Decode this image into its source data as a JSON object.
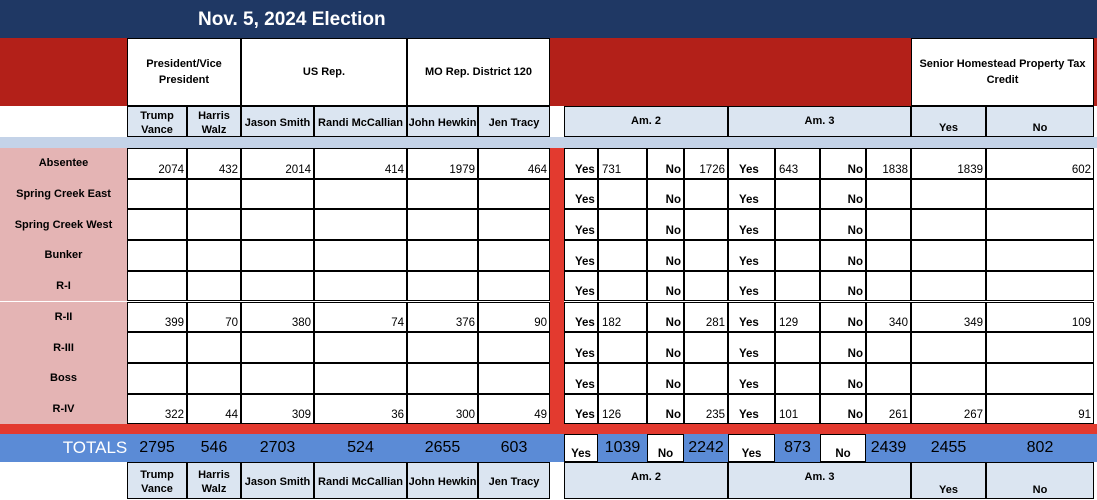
{
  "title": "Nov. 5, 2024 Election",
  "groups": {
    "president": "President/Vice President",
    "us_rep": "US Rep.",
    "mo_rep": "MO Rep. District 120",
    "senior": "Senior Homestead Property Tax Credit"
  },
  "candidates": {
    "trump": "Trump Vance",
    "harris": "Harris Walz",
    "smith": "Jason Smith",
    "mccallian": "Randi McCallian",
    "hewkin": "John Hewkin",
    "tracy": "Jen Tracy"
  },
  "amendments": {
    "am2": "Am. 2",
    "am3": "Am. 3"
  },
  "yes_label": "Yes",
  "no_label": "No",
  "rows": [
    {
      "label": "Absentee",
      "trump": "2074",
      "harris": "432",
      "smith": "2014",
      "mccallian": "414",
      "hewkin": "1979",
      "tracy": "464",
      "am2_yes": "731",
      "am2_no": "1726",
      "am3_yes": "643",
      "am3_no": "1838",
      "senior_yes": "1839",
      "senior_no": "602"
    },
    {
      "label": "Spring Creek East",
      "trump": "",
      "harris": "",
      "smith": "",
      "mccallian": "",
      "hewkin": "",
      "tracy": "",
      "am2_yes": "",
      "am2_no": "",
      "am3_yes": "",
      "am3_no": "",
      "senior_yes": "",
      "senior_no": ""
    },
    {
      "label": "Spring Creek West",
      "trump": "",
      "harris": "",
      "smith": "",
      "mccallian": "",
      "hewkin": "",
      "tracy": "",
      "am2_yes": "",
      "am2_no": "",
      "am3_yes": "",
      "am3_no": "",
      "senior_yes": "",
      "senior_no": ""
    },
    {
      "label": "Bunker",
      "trump": "",
      "harris": "",
      "smith": "",
      "mccallian": "",
      "hewkin": "",
      "tracy": "",
      "am2_yes": "",
      "am2_no": "",
      "am3_yes": "",
      "am3_no": "",
      "senior_yes": "",
      "senior_no": ""
    },
    {
      "label": "R-I",
      "trump": "",
      "harris": "",
      "smith": "",
      "mccallian": "",
      "hewkin": "",
      "tracy": "",
      "am2_yes": "",
      "am2_no": "",
      "am3_yes": "",
      "am3_no": "",
      "senior_yes": "",
      "senior_no": ""
    },
    {
      "label": "R-II",
      "trump": "399",
      "harris": "70",
      "smith": "380",
      "mccallian": "74",
      "hewkin": "376",
      "tracy": "90",
      "am2_yes": "182",
      "am2_no": "281",
      "am3_yes": "129",
      "am3_no": "340",
      "senior_yes": "349",
      "senior_no": "109"
    },
    {
      "label": "R-III",
      "trump": "",
      "harris": "",
      "smith": "",
      "mccallian": "",
      "hewkin": "",
      "tracy": "",
      "am2_yes": "",
      "am2_no": "",
      "am3_yes": "",
      "am3_no": "",
      "senior_yes": "",
      "senior_no": ""
    },
    {
      "label": "Boss",
      "trump": "",
      "harris": "",
      "smith": "",
      "mccallian": "",
      "hewkin": "",
      "tracy": "",
      "am2_yes": "",
      "am2_no": "",
      "am3_yes": "",
      "am3_no": "",
      "senior_yes": "",
      "senior_no": ""
    },
    {
      "label": "R-IV",
      "trump": "322",
      "harris": "44",
      "smith": "309",
      "mccallian": "36",
      "hewkin": "300",
      "tracy": "49",
      "am2_yes": "126",
      "am2_no": "235",
      "am3_yes": "101",
      "am3_no": "261",
      "senior_yes": "267",
      "senior_no": "91"
    }
  ],
  "totals": {
    "label": "TOTALS",
    "trump": "2795",
    "harris": "546",
    "smith": "2703",
    "mccallian": "524",
    "hewkin": "2655",
    "tracy": "603",
    "am2_yes": "1039",
    "am2_no": "2242",
    "am3_yes": "873",
    "am3_no": "2439",
    "senior_yes": "2455",
    "senior_no": "802"
  },
  "colors": {
    "title_bg": "#1f3864",
    "header_red": "#b32019",
    "separator_blue": "#c4d3e8",
    "row_label_pink": "#e4b4b4",
    "totals_blue": "#5b8bd6",
    "marker_red": "#e33a2f"
  }
}
